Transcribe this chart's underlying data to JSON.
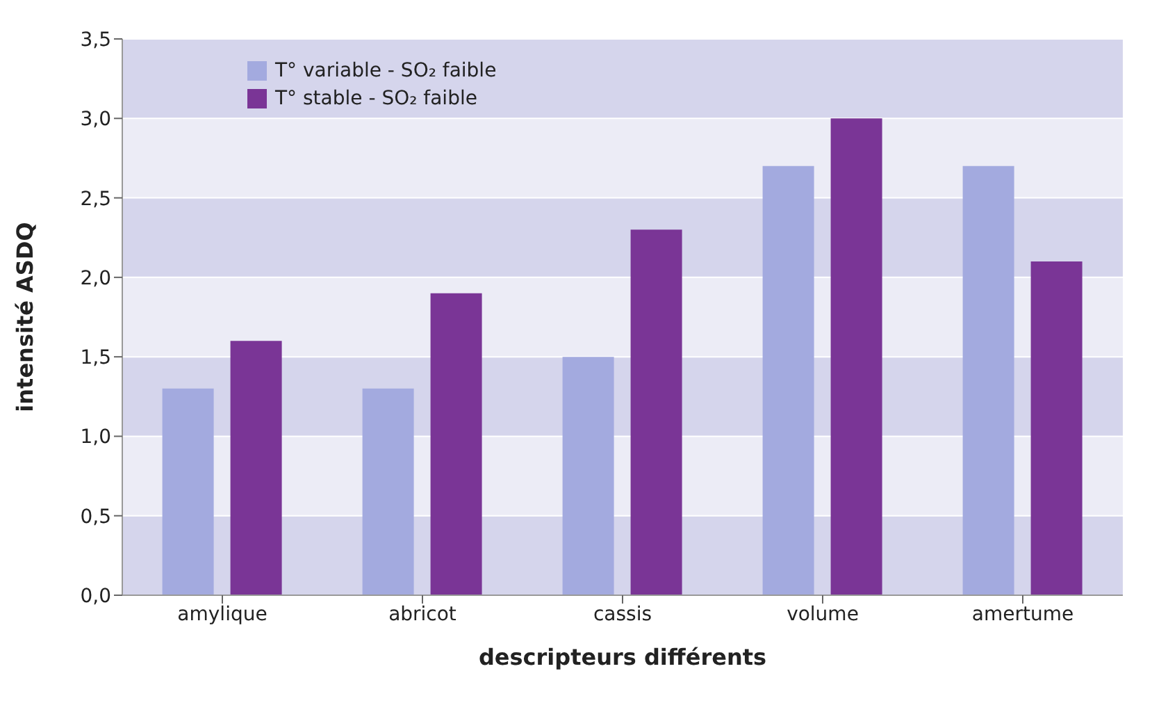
{
  "chart_data": {
    "type": "bar",
    "xlabel": "descripteurs différents",
    "ylabel": "intensité ASDQ",
    "categories": [
      "amylique",
      "abricot",
      "cassis",
      "volume",
      "amertume"
    ],
    "series": [
      {
        "name": "T° variable - SO₂ faible",
        "color": "#a3aadf",
        "values": [
          1.3,
          1.3,
          1.5,
          2.7,
          2.7
        ]
      },
      {
        "name": "T° stable - SO₂ faible",
        "color": "#7a3596",
        "values": [
          1.6,
          1.9,
          2.3,
          3.0,
          2.1
        ]
      }
    ],
    "ylim": [
      0,
      3.5
    ],
    "yticks": [
      {
        "value": 0,
        "label": "0,0"
      },
      {
        "value": 0.5,
        "label": "0,5"
      },
      {
        "value": 1,
        "label": "1,0"
      },
      {
        "value": 1.5,
        "label": "1,5"
      },
      {
        "value": 2,
        "label": "2,0"
      },
      {
        "value": 2.5,
        "label": "2,5"
      },
      {
        "value": 3,
        "label": "3,0"
      },
      {
        "value": 3.5,
        "label": "3,5"
      }
    ],
    "grid": "y",
    "legend": "top left"
  }
}
